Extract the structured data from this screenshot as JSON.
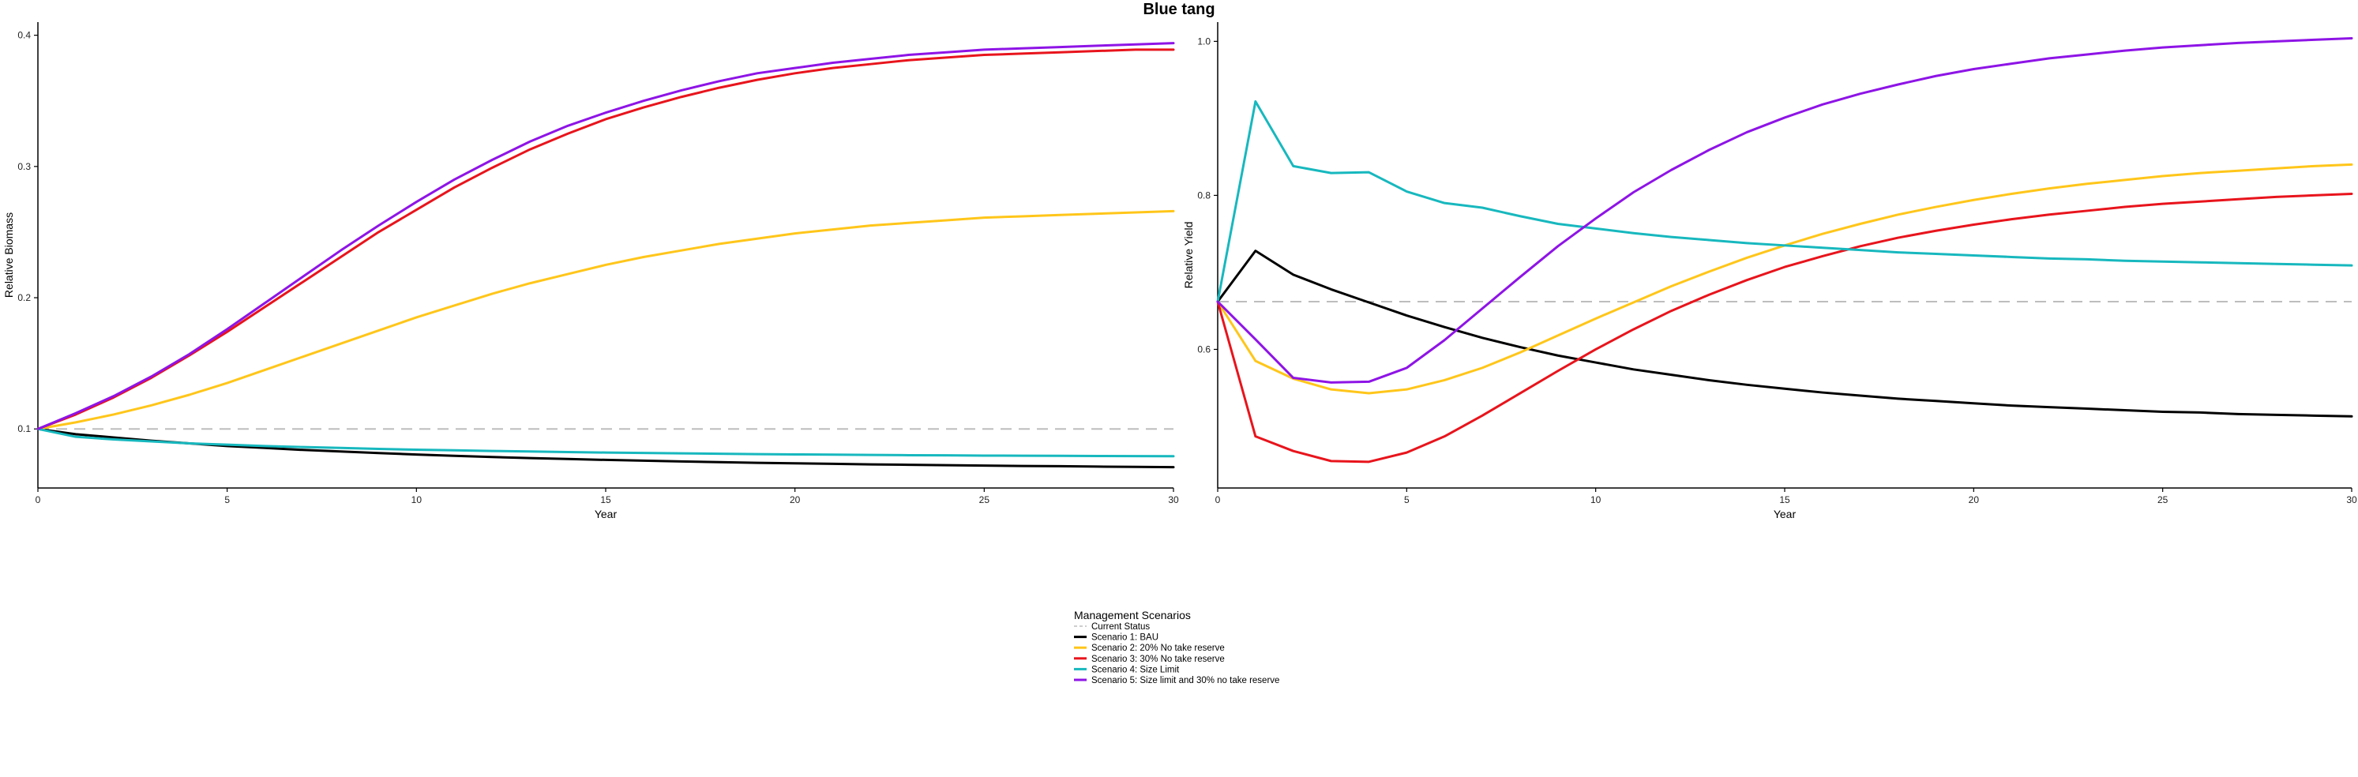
{
  "title": "Blue tang",
  "legend": {
    "title": "Management Scenarios",
    "items": [
      {
        "label": "Current Status",
        "color": "#bdbdbd",
        "dashed": true
      },
      {
        "label": "Scenario 1: BAU",
        "color": "#000000"
      },
      {
        "label": "Scenario 2: 20% No take reserve",
        "color": "#FFC61A"
      },
      {
        "label": "Scenario 3: 30% No take reserve",
        "color": "#E8141C"
      },
      {
        "label": "Scenario 4: Size Limit",
        "color": "#17B8BE"
      },
      {
        "label": "Scenario 5: Size limit and 30% no take reserve",
        "color": "#8E14E6"
      }
    ]
  },
  "chart_data": [
    {
      "type": "line",
      "xlabel": "Year",
      "ylabel": "Relative Biomass",
      "xlim": [
        0,
        30
      ],
      "ylim": [
        0.055,
        0.41
      ],
      "xticks": [
        0,
        5,
        10,
        15,
        20,
        25,
        30
      ],
      "yticks": [
        0.1,
        0.2,
        0.3,
        0.4
      ],
      "grid": false,
      "reference_line": {
        "name": "Current Status",
        "y": 0.1
      },
      "x": [
        0,
        1,
        2,
        3,
        4,
        5,
        6,
        7,
        8,
        9,
        10,
        11,
        12,
        13,
        14,
        15,
        16,
        17,
        18,
        19,
        20,
        21,
        22,
        23,
        24,
        25,
        26,
        27,
        28,
        29,
        30
      ],
      "series": [
        {
          "name": "Scenario 1: BAU",
          "color": "#000000",
          "values": [
            0.1,
            0.096,
            0.0935,
            0.091,
            0.089,
            0.087,
            0.0855,
            0.084,
            0.0828,
            0.0816,
            0.0805,
            0.0795,
            0.0786,
            0.0778,
            0.0771,
            0.0764,
            0.0758,
            0.0752,
            0.0747,
            0.0742,
            0.0738,
            0.0734,
            0.073,
            0.0727,
            0.0724,
            0.0721,
            0.0718,
            0.0716,
            0.0713,
            0.0711,
            0.0709
          ]
        },
        {
          "name": "Scenario 2: 20% No take reserve",
          "color": "#FFC61A",
          "values": [
            0.1,
            0.105,
            0.111,
            0.118,
            0.126,
            0.135,
            0.145,
            0.155,
            0.165,
            0.175,
            0.185,
            0.194,
            0.203,
            0.211,
            0.218,
            0.225,
            0.231,
            0.236,
            0.241,
            0.245,
            0.249,
            0.252,
            0.255,
            0.257,
            0.259,
            0.261,
            0.262,
            0.263,
            0.264,
            0.265,
            0.266
          ]
        },
        {
          "name": "Scenario 3: 30% No take reserve",
          "color": "#E8141C",
          "values": [
            0.1,
            0.111,
            0.124,
            0.139,
            0.156,
            0.174,
            0.193,
            0.212,
            0.231,
            0.25,
            0.267,
            0.284,
            0.299,
            0.313,
            0.325,
            0.336,
            0.345,
            0.353,
            0.36,
            0.366,
            0.371,
            0.375,
            0.378,
            0.381,
            0.383,
            0.385,
            0.386,
            0.387,
            0.388,
            0.389,
            0.389
          ]
        },
        {
          "name": "Scenario 4: Size Limit",
          "color": "#17B8BE",
          "values": [
            0.1,
            0.094,
            0.092,
            0.0905,
            0.089,
            0.088,
            0.087,
            0.0862,
            0.0855,
            0.0848,
            0.0842,
            0.0837,
            0.0832,
            0.0828,
            0.0824,
            0.082,
            0.0817,
            0.0814,
            0.0811,
            0.0808,
            0.0806,
            0.0804,
            0.0802,
            0.08,
            0.0799,
            0.0797,
            0.0796,
            0.0795,
            0.0794,
            0.0793,
            0.0792
          ]
        },
        {
          "name": "Scenario 5: Size limit and 30% no take reserve",
          "color": "#8E14E6",
          "values": [
            0.1,
            0.112,
            0.125,
            0.14,
            0.157,
            0.176,
            0.196,
            0.216,
            0.236,
            0.255,
            0.273,
            0.29,
            0.305,
            0.319,
            0.331,
            0.341,
            0.35,
            0.358,
            0.365,
            0.371,
            0.375,
            0.379,
            0.382,
            0.385,
            0.387,
            0.389,
            0.39,
            0.391,
            0.392,
            0.393,
            0.394
          ]
        }
      ]
    },
    {
      "type": "line",
      "xlabel": "Year",
      "ylabel": "Relative Yield",
      "xlim": [
        0,
        30
      ],
      "ylim": [
        0.42,
        1.025
      ],
      "xticks": [
        0,
        5,
        10,
        15,
        20,
        25,
        30
      ],
      "yticks": [
        0.6,
        0.8,
        1.0
      ],
      "ytick_labels": [
        "0.6",
        "0.8",
        "1.0"
      ],
      "grid": false,
      "reference_line": {
        "name": "Current Status",
        "y": 0.662
      },
      "x": [
        0,
        1,
        2,
        3,
        4,
        5,
        6,
        7,
        8,
        9,
        10,
        11,
        12,
        13,
        14,
        15,
        16,
        17,
        18,
        19,
        20,
        21,
        22,
        23,
        24,
        25,
        26,
        27,
        28,
        29,
        30
      ],
      "series": [
        {
          "name": "Scenario 1: BAU",
          "color": "#000000",
          "values": [
            0.662,
            0.728,
            0.697,
            0.678,
            0.661,
            0.644,
            0.629,
            0.615,
            0.603,
            0.592,
            0.583,
            0.574,
            0.567,
            0.56,
            0.554,
            0.549,
            0.544,
            0.54,
            0.536,
            0.533,
            0.53,
            0.527,
            0.525,
            0.523,
            0.521,
            0.519,
            0.518,
            0.516,
            0.515,
            0.514,
            0.513
          ]
        },
        {
          "name": "Scenario 2: 20% No take reserve",
          "color": "#FFC61A",
          "values": [
            0.662,
            0.585,
            0.562,
            0.548,
            0.543,
            0.548,
            0.56,
            0.576,
            0.596,
            0.618,
            0.64,
            0.661,
            0.682,
            0.701,
            0.719,
            0.735,
            0.75,
            0.763,
            0.775,
            0.785,
            0.794,
            0.802,
            0.809,
            0.815,
            0.82,
            0.825,
            0.829,
            0.832,
            0.835,
            0.838,
            0.84
          ]
        },
        {
          "name": "Scenario 3: 30% No take reserve",
          "color": "#E8141C",
          "values": [
            0.662,
            0.487,
            0.468,
            0.455,
            0.454,
            0.466,
            0.487,
            0.514,
            0.543,
            0.572,
            0.6,
            0.626,
            0.65,
            0.671,
            0.69,
            0.707,
            0.721,
            0.734,
            0.745,
            0.754,
            0.762,
            0.769,
            0.775,
            0.78,
            0.785,
            0.789,
            0.792,
            0.795,
            0.798,
            0.8,
            0.802
          ]
        },
        {
          "name": "Scenario 4: Size Limit",
          "color": "#17B8BE",
          "values": [
            0.662,
            0.922,
            0.838,
            0.829,
            0.83,
            0.805,
            0.79,
            0.784,
            0.773,
            0.763,
            0.757,
            0.751,
            0.746,
            0.742,
            0.738,
            0.735,
            0.732,
            0.729,
            0.726,
            0.724,
            0.722,
            0.72,
            0.718,
            0.717,
            0.715,
            0.714,
            0.713,
            0.712,
            0.711,
            0.71,
            0.709
          ]
        },
        {
          "name": "Scenario 5: Size limit and 30% no take reserve",
          "color": "#8E14E6",
          "values": [
            0.662,
            0.613,
            0.563,
            0.557,
            0.558,
            0.576,
            0.612,
            0.653,
            0.694,
            0.734,
            0.77,
            0.804,
            0.833,
            0.859,
            0.882,
            0.901,
            0.918,
            0.932,
            0.944,
            0.955,
            0.964,
            0.971,
            0.978,
            0.983,
            0.988,
            0.992,
            0.995,
            0.998,
            1.0,
            1.002,
            1.004
          ]
        }
      ]
    }
  ]
}
